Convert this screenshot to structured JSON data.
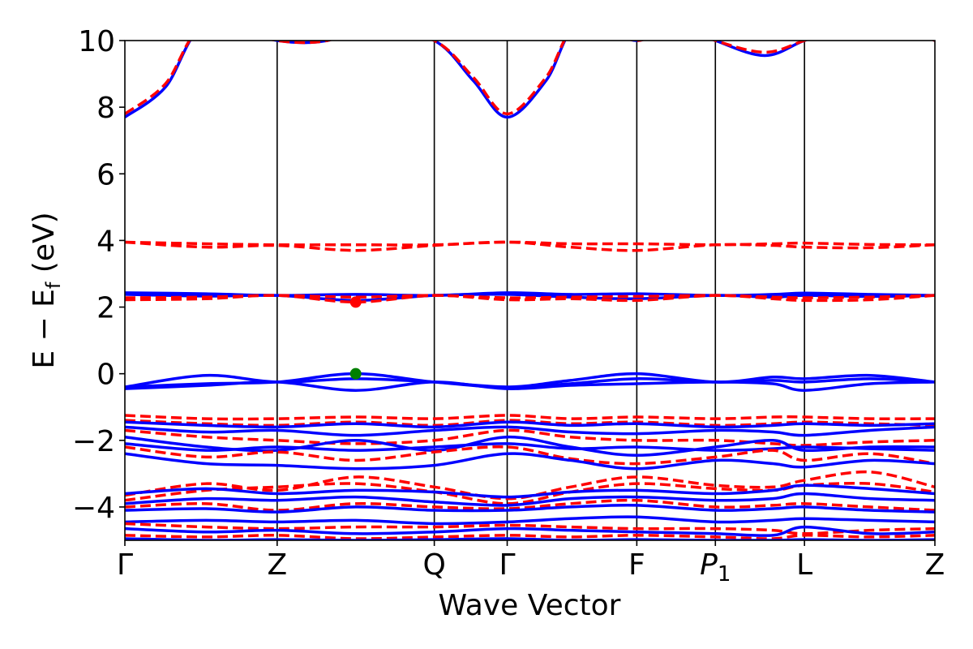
{
  "chart_data": {
    "type": "line",
    "title": "",
    "xlabel": "Wave Vector",
    "ylabel": "E − E",
    "ylabel_sub": "f",
    "ylabel_unit": " (eV)",
    "ylim": [
      -5,
      10
    ],
    "xlim": [
      0,
      1
    ],
    "yticks": [
      -4,
      -2,
      0,
      2,
      4,
      6,
      8,
      10
    ],
    "ytick_labels": [
      "−4",
      "−2",
      "0",
      "2",
      "4",
      "6",
      "8",
      "10"
    ],
    "kpoints": [
      {
        "label": "Γ",
        "sub": "",
        "italic": false,
        "x": 0.0
      },
      {
        "label": "Z",
        "sub": "",
        "italic": false,
        "x": 0.188
      },
      {
        "label": "Q",
        "sub": "",
        "italic": false,
        "x": 0.382
      },
      {
        "label": "Γ",
        "sub": "",
        "italic": false,
        "x": 0.472
      },
      {
        "label": "F",
        "sub": "",
        "italic": false,
        "x": 0.632
      },
      {
        "label": "P",
        "sub": "1",
        "italic": true,
        "x": 0.729
      },
      {
        "label": "L",
        "sub": "",
        "italic": false,
        "x": 0.839
      },
      {
        "label": "Z",
        "sub": "",
        "italic": false,
        "x": 1.0
      }
    ],
    "grid": false,
    "colors": {
      "spin_up": "#0000ff",
      "spin_down": "#ff0000",
      "vbm": "#008000",
      "cbm": "#ff0000"
    },
    "markers": [
      {
        "name": "VBM",
        "x": 0.285,
        "y": 0.0,
        "color": "#008000"
      },
      {
        "name": "CBM",
        "x": 0.285,
        "y": 2.15,
        "color": "#ff0000"
      }
    ],
    "series": [
      {
        "style": "solid",
        "color": "#0000ff",
        "x": [
          0,
          0.05,
          0.1,
          0.188,
          0.25,
          0.3,
          0.382,
          0.43,
          0.472,
          0.52,
          0.56,
          0.632,
          0.68,
          0.729,
          0.79,
          0.839,
          0.9,
          0.95,
          1.0
        ],
        "y": [
          7.7,
          8.6,
          10.5,
          10.0,
          10.0,
          10.5,
          10.0,
          8.8,
          7.7,
          8.8,
          10.5,
          10.0,
          10.5,
          10.0,
          9.55,
          10.0,
          10.5,
          10.5,
          10.0
        ]
      },
      {
        "style": "dashed",
        "color": "#ff0000",
        "x": [
          0,
          0.05,
          0.1,
          0.188,
          0.25,
          0.3,
          0.382,
          0.43,
          0.472,
          0.52,
          0.56,
          0.632,
          0.68,
          0.729,
          0.79,
          0.839,
          0.9,
          0.95,
          1.0
        ],
        "y": [
          7.8,
          8.7,
          10.5,
          10.0,
          10.0,
          10.5,
          10.0,
          8.9,
          7.8,
          8.9,
          10.5,
          10.0,
          10.5,
          10.0,
          9.65,
          10.0,
          10.5,
          10.5,
          10.0
        ]
      },
      {
        "style": "dashed",
        "color": "#ff0000",
        "x": [
          0,
          0.1,
          0.188,
          0.285,
          0.382,
          0.472,
          0.55,
          0.632,
          0.729,
          0.8,
          0.839,
          0.92,
          1.0
        ],
        "y": [
          3.95,
          3.9,
          3.87,
          3.87,
          3.87,
          3.95,
          3.9,
          3.9,
          3.87,
          3.9,
          3.92,
          3.88,
          3.87
        ]
      },
      {
        "style": "dashed",
        "color": "#ff0000",
        "x": [
          0,
          0.1,
          0.188,
          0.285,
          0.382,
          0.472,
          0.55,
          0.632,
          0.729,
          0.8,
          0.839,
          0.92,
          1.0
        ],
        "y": [
          3.95,
          3.8,
          3.85,
          3.7,
          3.85,
          3.95,
          3.8,
          3.7,
          3.87,
          3.85,
          3.8,
          3.78,
          3.87
        ]
      },
      {
        "style": "solid",
        "color": "#0000ff",
        "x": [
          0,
          0.1,
          0.188,
          0.285,
          0.382,
          0.472,
          0.55,
          0.632,
          0.729,
          0.8,
          0.839,
          0.92,
          1.0
        ],
        "y": [
          2.43,
          2.4,
          2.35,
          2.38,
          2.35,
          2.43,
          2.38,
          2.4,
          2.35,
          2.38,
          2.42,
          2.38,
          2.35
        ]
      },
      {
        "style": "solid",
        "color": "#0000ff",
        "x": [
          0,
          0.1,
          0.188,
          0.285,
          0.382,
          0.472,
          0.55,
          0.632,
          0.729,
          0.8,
          0.839,
          0.92,
          1.0
        ],
        "y": [
          2.38,
          2.33,
          2.35,
          2.2,
          2.35,
          2.38,
          2.3,
          2.25,
          2.35,
          2.3,
          2.35,
          2.32,
          2.35
        ]
      },
      {
        "style": "dashed",
        "color": "#ff0000",
        "x": [
          0,
          0.1,
          0.188,
          0.285,
          0.382,
          0.472,
          0.55,
          0.632,
          0.729,
          0.8,
          0.839,
          0.92,
          1.0
        ],
        "y": [
          2.28,
          2.3,
          2.35,
          2.3,
          2.35,
          2.28,
          2.3,
          2.32,
          2.35,
          2.3,
          2.28,
          2.3,
          2.35
        ]
      },
      {
        "style": "dashed",
        "color": "#ff0000",
        "x": [
          0,
          0.1,
          0.188,
          0.285,
          0.382,
          0.472,
          0.55,
          0.632,
          0.729,
          0.8,
          0.839,
          0.92,
          1.0
        ],
        "y": [
          2.22,
          2.25,
          2.35,
          2.15,
          2.35,
          2.22,
          2.25,
          2.2,
          2.35,
          2.25,
          2.2,
          2.22,
          2.35
        ]
      },
      {
        "style": "solid",
        "color": "#0000ff",
        "x": [
          0,
          0.1,
          0.188,
          0.285,
          0.382,
          0.472,
          0.55,
          0.632,
          0.729,
          0.8,
          0.839,
          0.92,
          1.0
        ],
        "y": [
          -0.4,
          -0.3,
          -0.25,
          0.0,
          -0.25,
          -0.4,
          -0.2,
          0.0,
          -0.25,
          -0.1,
          -0.15,
          -0.05,
          -0.25
        ]
      },
      {
        "style": "solid",
        "color": "#0000ff",
        "x": [
          0,
          0.1,
          0.188,
          0.285,
          0.382,
          0.472,
          0.55,
          0.632,
          0.729,
          0.8,
          0.839,
          0.92,
          1.0
        ],
        "y": [
          -0.4,
          -0.05,
          -0.25,
          -0.15,
          -0.25,
          -0.4,
          -0.3,
          -0.15,
          -0.25,
          -0.2,
          -0.25,
          -0.15,
          -0.25
        ]
      },
      {
        "style": "solid",
        "color": "#0000ff",
        "x": [
          0,
          0.1,
          0.188,
          0.285,
          0.382,
          0.472,
          0.55,
          0.632,
          0.729,
          0.8,
          0.839,
          0.92,
          1.0
        ],
        "y": [
          -0.45,
          -0.35,
          -0.25,
          -0.5,
          -0.25,
          -0.45,
          -0.35,
          -0.3,
          -0.25,
          -0.3,
          -0.5,
          -0.3,
          -0.25
        ]
      },
      {
        "style": "dashed",
        "color": "#ff0000",
        "x": [
          0,
          0.1,
          0.188,
          0.285,
          0.382,
          0.472,
          0.55,
          0.632,
          0.729,
          0.8,
          0.839,
          0.92,
          1.0
        ],
        "y": [
          -1.25,
          -1.35,
          -1.35,
          -1.3,
          -1.35,
          -1.25,
          -1.35,
          -1.3,
          -1.35,
          -1.3,
          -1.3,
          -1.35,
          -1.35
        ]
      },
      {
        "style": "dashed",
        "color": "#ff0000",
        "x": [
          0,
          0.1,
          0.188,
          0.285,
          0.382,
          0.472,
          0.55,
          0.632,
          0.729,
          0.8,
          0.839,
          0.92,
          1.0
        ],
        "y": [
          -1.4,
          -1.5,
          -1.55,
          -1.45,
          -1.55,
          -1.4,
          -1.5,
          -1.45,
          -1.55,
          -1.5,
          -1.45,
          -1.5,
          -1.55
        ]
      },
      {
        "style": "solid",
        "color": "#0000ff",
        "x": [
          0,
          0.1,
          0.188,
          0.285,
          0.382,
          0.472,
          0.55,
          0.632,
          0.729,
          0.8,
          0.839,
          0.92,
          1.0
        ],
        "y": [
          -1.45,
          -1.55,
          -1.6,
          -1.5,
          -1.6,
          -1.45,
          -1.55,
          -1.5,
          -1.6,
          -1.55,
          -1.5,
          -1.55,
          -1.5
        ]
      },
      {
        "style": "solid",
        "color": "#0000ff",
        "x": [
          0,
          0.1,
          0.188,
          0.285,
          0.382,
          0.472,
          0.55,
          0.632,
          0.729,
          0.8,
          0.839,
          0.92,
          1.0
        ],
        "y": [
          -1.6,
          -1.75,
          -1.7,
          -1.85,
          -1.7,
          -1.6,
          -1.75,
          -1.8,
          -1.7,
          -1.75,
          -1.85,
          -1.7,
          -1.6
        ]
      },
      {
        "style": "dashed",
        "color": "#ff0000",
        "x": [
          0,
          0.1,
          0.188,
          0.285,
          0.382,
          0.472,
          0.55,
          0.632,
          0.729,
          0.8,
          0.839,
          0.92,
          1.0
        ],
        "y": [
          -1.7,
          -1.9,
          -2.0,
          -2.1,
          -2.0,
          -1.7,
          -1.9,
          -2.0,
          -2.0,
          -2.1,
          -2.15,
          -2.05,
          -2.0
        ]
      },
      {
        "style": "solid",
        "color": "#0000ff",
        "x": [
          0,
          0.1,
          0.188,
          0.285,
          0.382,
          0.472,
          0.55,
          0.632,
          0.729,
          0.8,
          0.839,
          0.92,
          1.0
        ],
        "y": [
          -1.9,
          -2.2,
          -2.3,
          -2.0,
          -2.3,
          -1.9,
          -2.2,
          -2.45,
          -2.2,
          -2.0,
          -2.3,
          -2.2,
          -2.2
        ]
      },
      {
        "style": "solid",
        "color": "#0000ff",
        "x": [
          0,
          0.1,
          0.188,
          0.285,
          0.382,
          0.472,
          0.55,
          0.632,
          0.729,
          0.8,
          0.839,
          0.92,
          1.0
        ],
        "y": [
          -2.1,
          -2.3,
          -2.2,
          -2.3,
          -2.2,
          -2.1,
          -2.25,
          -2.2,
          -2.3,
          -2.25,
          -2.2,
          -2.25,
          -2.3
        ]
      },
      {
        "style": "dashed",
        "color": "#ff0000",
        "x": [
          0,
          0.1,
          0.188,
          0.285,
          0.382,
          0.472,
          0.55,
          0.632,
          0.729,
          0.8,
          0.839,
          0.92,
          1.0
        ],
        "y": [
          -2.2,
          -2.5,
          -2.35,
          -2.6,
          -2.35,
          -2.2,
          -2.55,
          -2.7,
          -2.5,
          -2.3,
          -2.6,
          -2.4,
          -2.7
        ]
      },
      {
        "style": "solid",
        "color": "#0000ff",
        "x": [
          0,
          0.1,
          0.188,
          0.285,
          0.382,
          0.472,
          0.55,
          0.632,
          0.729,
          0.8,
          0.839,
          0.92,
          1.0
        ],
        "y": [
          -2.4,
          -2.7,
          -2.75,
          -2.85,
          -2.75,
          -2.4,
          -2.6,
          -2.85,
          -2.6,
          -2.7,
          -2.8,
          -2.6,
          -2.7
        ]
      },
      {
        "style": "dashed",
        "color": "#ff0000",
        "x": [
          0,
          0.1,
          0.188,
          0.285,
          0.382,
          0.472,
          0.55,
          0.632,
          0.729,
          0.8,
          0.839,
          0.92,
          1.0
        ],
        "y": [
          -3.65,
          -3.3,
          -3.5,
          -3.1,
          -3.4,
          -3.75,
          -3.4,
          -3.1,
          -3.35,
          -3.4,
          -3.2,
          -2.95,
          -3.4
        ]
      },
      {
        "style": "dashed",
        "color": "#ff0000",
        "x": [
          0,
          0.1,
          0.188,
          0.285,
          0.382,
          0.472,
          0.55,
          0.632,
          0.729,
          0.8,
          0.839,
          0.92,
          1.0
        ],
        "y": [
          -3.8,
          -3.5,
          -3.4,
          -3.3,
          -3.55,
          -3.9,
          -3.55,
          -3.3,
          -3.45,
          -3.5,
          -3.35,
          -3.3,
          -3.55
        ]
      },
      {
        "style": "solid",
        "color": "#0000ff",
        "x": [
          0,
          0.1,
          0.188,
          0.285,
          0.382,
          0.472,
          0.55,
          0.632,
          0.729,
          0.8,
          0.839,
          0.92,
          1.0
        ],
        "y": [
          -3.6,
          -3.45,
          -3.6,
          -3.5,
          -3.55,
          -3.7,
          -3.55,
          -3.5,
          -3.6,
          -3.5,
          -3.35,
          -3.45,
          -3.6
        ]
      },
      {
        "style": "solid",
        "color": "#0000ff",
        "x": [
          0,
          0.1,
          0.188,
          0.285,
          0.382,
          0.472,
          0.55,
          0.632,
          0.729,
          0.8,
          0.839,
          0.92,
          1.0
        ],
        "y": [
          -3.9,
          -3.75,
          -3.8,
          -3.7,
          -3.85,
          -3.95,
          -3.75,
          -3.7,
          -3.8,
          -3.75,
          -3.6,
          -3.75,
          -3.8
        ]
      },
      {
        "style": "dashed",
        "color": "#ff0000",
        "x": [
          0,
          0.1,
          0.188,
          0.285,
          0.382,
          0.472,
          0.55,
          0.632,
          0.729,
          0.8,
          0.839,
          0.92,
          1.0
        ],
        "y": [
          -4.0,
          -3.9,
          -4.1,
          -3.9,
          -4.0,
          -4.05,
          -3.9,
          -3.8,
          -4.0,
          -3.95,
          -3.9,
          -4.0,
          -4.1
        ]
      },
      {
        "style": "solid",
        "color": "#0000ff",
        "x": [
          0,
          0.1,
          0.188,
          0.285,
          0.382,
          0.472,
          0.55,
          0.632,
          0.729,
          0.8,
          0.839,
          0.92,
          1.0
        ],
        "y": [
          -4.1,
          -4.05,
          -4.15,
          -4.0,
          -4.1,
          -4.1,
          -4.0,
          -3.95,
          -4.1,
          -4.05,
          -4.0,
          -4.1,
          -4.15
        ]
      },
      {
        "style": "solid",
        "color": "#0000ff",
        "x": [
          0,
          0.1,
          0.188,
          0.285,
          0.382,
          0.472,
          0.55,
          0.632,
          0.729,
          0.8,
          0.839,
          0.92,
          1.0
        ],
        "y": [
          -4.45,
          -4.4,
          -4.45,
          -4.4,
          -4.5,
          -4.45,
          -4.35,
          -4.3,
          -4.45,
          -4.4,
          -4.35,
          -4.4,
          -4.45
        ]
      },
      {
        "style": "dashed",
        "color": "#ff0000",
        "x": [
          0,
          0.1,
          0.188,
          0.285,
          0.382,
          0.472,
          0.55,
          0.632,
          0.729,
          0.8,
          0.839,
          0.92,
          1.0
        ],
        "y": [
          -4.5,
          -4.6,
          -4.65,
          -4.6,
          -4.6,
          -4.55,
          -4.6,
          -4.65,
          -4.65,
          -4.7,
          -4.8,
          -4.7,
          -4.65
        ]
      },
      {
        "style": "solid",
        "color": "#0000ff",
        "x": [
          0,
          0.1,
          0.188,
          0.285,
          0.382,
          0.472,
          0.55,
          0.632,
          0.729,
          0.8,
          0.839,
          0.92,
          1.0
        ],
        "y": [
          -4.65,
          -4.75,
          -4.7,
          -4.8,
          -4.75,
          -4.65,
          -4.7,
          -4.75,
          -4.8,
          -4.85,
          -4.6,
          -4.8,
          -4.75
        ]
      },
      {
        "style": "dashed",
        "color": "#ff0000",
        "x": [
          0,
          0.1,
          0.188,
          0.285,
          0.382,
          0.472,
          0.55,
          0.632,
          0.729,
          0.8,
          0.839,
          0.92,
          1.0
        ],
        "y": [
          -4.85,
          -4.9,
          -4.85,
          -4.95,
          -4.9,
          -4.85,
          -4.9,
          -4.85,
          -4.9,
          -4.95,
          -4.85,
          -4.9,
          -4.85
        ]
      },
      {
        "style": "solid",
        "color": "#0000ff",
        "x": [
          0,
          0.1,
          0.188,
          0.285,
          0.382,
          0.472,
          0.55,
          0.632,
          0.729,
          0.8,
          0.839,
          0.92,
          1.0
        ],
        "y": [
          -4.95,
          -5.0,
          -4.98,
          -5.0,
          -4.98,
          -4.95,
          -5.0,
          -4.98,
          -5.0,
          -5.0,
          -4.98,
          -5.0,
          -4.98
        ]
      }
    ]
  }
}
